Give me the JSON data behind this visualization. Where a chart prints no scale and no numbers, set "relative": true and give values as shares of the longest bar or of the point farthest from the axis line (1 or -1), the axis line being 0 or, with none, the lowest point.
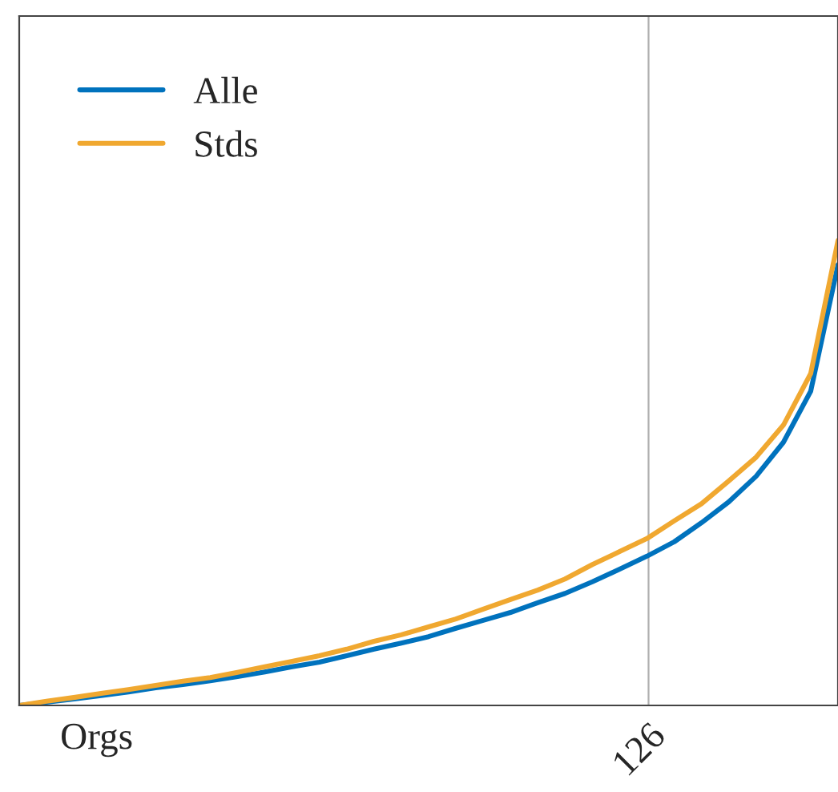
{
  "chart_data": {
    "type": "line",
    "xlabel": "Orgs",
    "relative": true,
    "categories": [
      null,
      null,
      null,
      null,
      null,
      null,
      null,
      null,
      null,
      null,
      null,
      null,
      null,
      null,
      null,
      null,
      null,
      null,
      null,
      null,
      null,
      null,
      null,
      null,
      null,
      null,
      null,
      null,
      null,
      null,
      null
    ],
    "annotations": [
      "126"
    ],
    "legend": "top left",
    "series": [
      {
        "name": "Alle",
        "color": "#0072bd",
        "values": [
          0,
          0.007,
          0.014,
          0.021,
          0.029,
          0.038,
          0.045,
          0.053,
          0.062,
          0.072,
          0.083,
          0.093,
          0.107,
          0.121,
          0.134,
          0.148,
          0.166,
          0.183,
          0.2,
          0.221,
          0.241,
          0.266,
          0.293,
          0.321,
          0.352,
          0.393,
          0.438,
          0.493,
          0.566,
          0.676,
          0.948
        ]
      },
      {
        "name": "Stds",
        "color": "#f0a830",
        "values": [
          0,
          0.009,
          0.017,
          0.026,
          0.034,
          0.043,
          0.052,
          0.06,
          0.071,
          0.083,
          0.095,
          0.107,
          0.121,
          0.138,
          0.152,
          0.169,
          0.186,
          0.207,
          0.228,
          0.248,
          0.272,
          0.303,
          0.331,
          0.359,
          0.397,
          0.434,
          0.483,
          0.534,
          0.603,
          0.714,
          1
        ]
      }
    ]
  }
}
